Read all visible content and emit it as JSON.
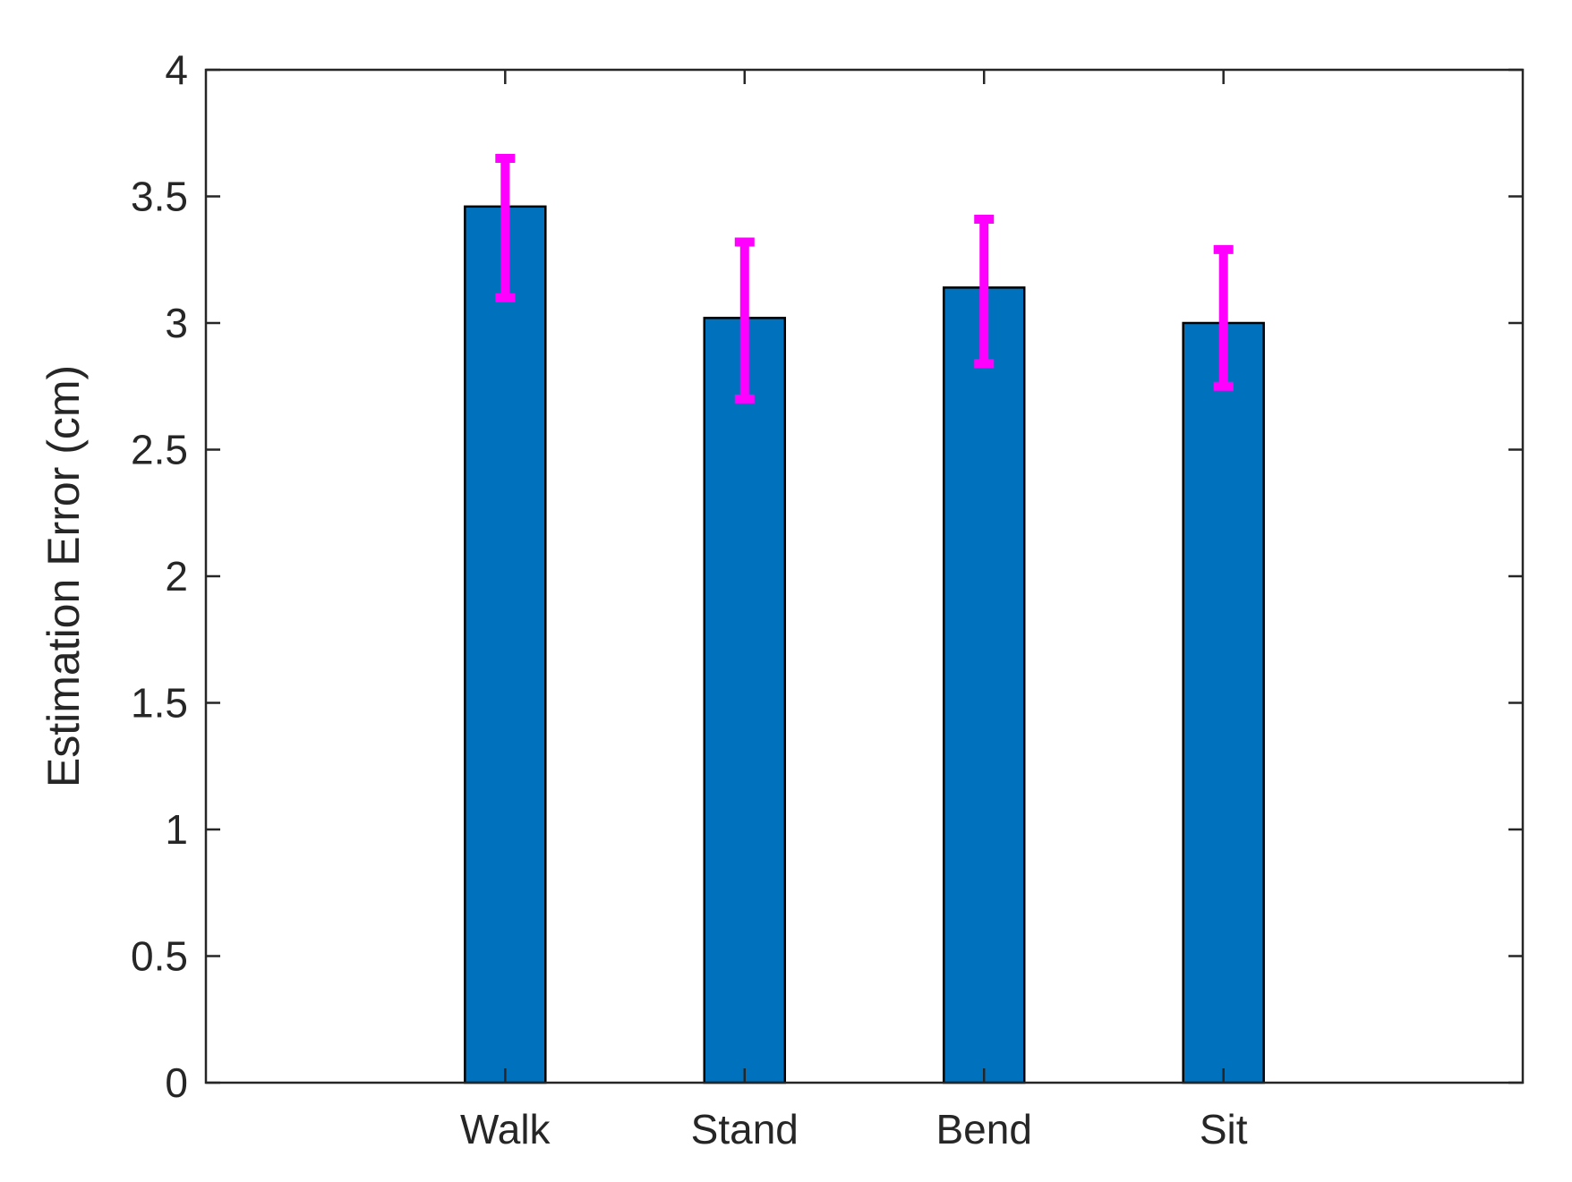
{
  "chart_data": {
    "type": "bar",
    "title": "",
    "xlabel": "",
    "ylabel": "Estimation Error (cm)",
    "categories": [
      "Walk",
      "Stand",
      "Bend",
      "Sit"
    ],
    "values": [
      3.46,
      3.02,
      3.14,
      3.0
    ],
    "error_low": [
      3.1,
      2.7,
      2.84,
      2.75
    ],
    "error_high": [
      3.65,
      3.32,
      3.41,
      3.29
    ],
    "ylim": [
      0,
      4
    ],
    "yticks": [
      "0",
      "0.5",
      "1",
      "1.5",
      "2",
      "2.5",
      "3",
      "3.5",
      "4"
    ],
    "ytick_values": [
      0,
      0.5,
      1,
      1.5,
      2,
      2.5,
      3,
      3.5,
      4
    ],
    "grid": false,
    "legend": "none",
    "colors": {
      "bar_fill": "#0072BD",
      "bar_edge": "#000000",
      "error_bar": "#FF00FF",
      "axes": "#262626"
    }
  }
}
